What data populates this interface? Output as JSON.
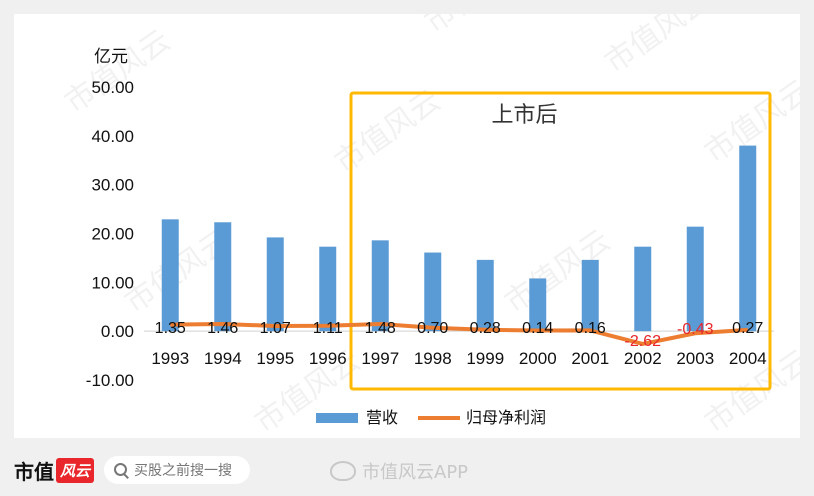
{
  "chart_data": {
    "type": "bar",
    "unit_label": "亿元",
    "categories": [
      "1993",
      "1994",
      "1995",
      "1996",
      "1997",
      "1998",
      "1999",
      "2000",
      "2001",
      "2002",
      "2003",
      "2004"
    ],
    "ylim": [
      -10,
      50
    ],
    "yticks": [
      "50.00",
      "40.00",
      "30.00",
      "20.00",
      "10.00",
      "0.00",
      "-10.00"
    ],
    "grid": false,
    "legend_position": "bottom",
    "series": [
      {
        "name": "营收",
        "type": "bar",
        "color": "#5b9bd5",
        "values": [
          22.9,
          22.3,
          19.2,
          17.3,
          18.6,
          16.1,
          14.6,
          10.8,
          14.6,
          17.3,
          21.4,
          38.0
        ]
      },
      {
        "name": "归母净利润",
        "type": "line",
        "color": "#ed7d31",
        "values": [
          1.35,
          1.46,
          1.07,
          1.11,
          1.48,
          0.7,
          0.28,
          0.14,
          0.16,
          -2.62,
          -0.43,
          0.27
        ],
        "data_labels": [
          "1.35",
          "1.46",
          "1.07",
          "1.11",
          "1.48",
          "0.70",
          "0.28",
          "0.14",
          "0.16",
          "-2.62",
          "-0.43",
          "0.27"
        ]
      }
    ],
    "annotation": {
      "text": "上市后",
      "from_category": "1997",
      "to_category": "2004",
      "color": "#ffb900"
    }
  },
  "footer": {
    "brand_text": "市值",
    "brand_red": "风云",
    "search_placeholder": "买股之前搜一搜",
    "weibo_text": "市值风云APP"
  },
  "watermark_text": "市值风云"
}
